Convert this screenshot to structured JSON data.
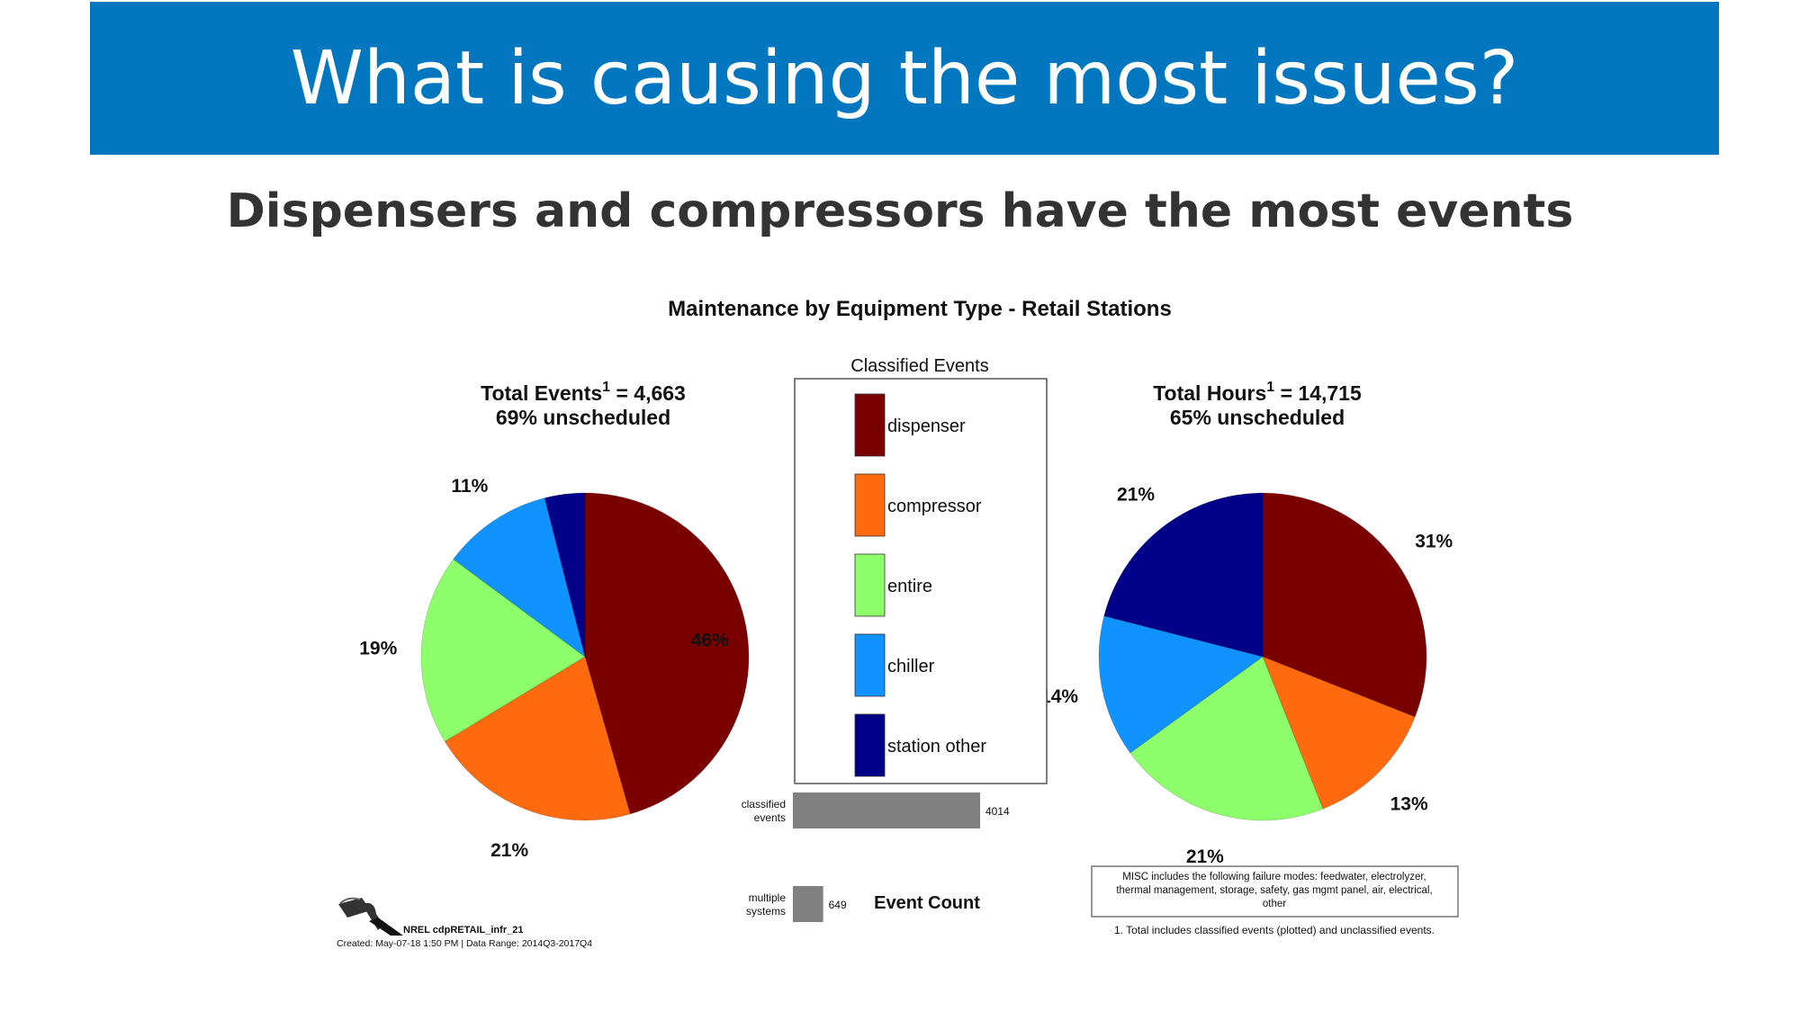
{
  "banner": {
    "title": "What is causing the most issues?"
  },
  "subtitle": "Dispensers and compressors have the most events",
  "chart_data": {
    "type": "pie",
    "title": "Maintenance by Equipment Type - Retail Stations",
    "legend": {
      "title": "Classified Events",
      "placement": "center",
      "items": [
        {
          "label": "dispenser",
          "color": "#7a0000"
        },
        {
          "label": "compressor",
          "color": "#ff6a0e"
        },
        {
          "label": "entire",
          "color": "#8dff6a"
        },
        {
          "label": "chiller",
          "color": "#1193ff"
        },
        {
          "label": "station other",
          "color": "#000088"
        }
      ]
    },
    "charts": [
      {
        "heading_prefix": "Total Events",
        "heading_sup": "1",
        "heading_value": " = 4,663",
        "heading_line2": "69% unscheduled",
        "categories": [
          "dispenser",
          "compressor",
          "entire",
          "chiller",
          "station other"
        ],
        "values": [
          46,
          21,
          19,
          11,
          4
        ],
        "labels": [
          "46%",
          "21%",
          "19%",
          "11%",
          ""
        ]
      },
      {
        "heading_prefix": "Total Hours",
        "heading_sup": "1",
        "heading_value": " = 14,715",
        "heading_line2": "65% unscheduled",
        "categories": [
          "dispenser",
          "compressor",
          "entire",
          "chiller",
          "station other"
        ],
        "values": [
          31,
          13,
          21,
          14,
          21
        ],
        "labels": [
          "31%",
          "13%",
          "21%",
          "14%",
          "21%"
        ]
      }
    ],
    "event_count": {
      "title": "Event Count",
      "bars": [
        {
          "label_line1": "classified",
          "label_line2": "events",
          "value": 4014,
          "value_label": "4014"
        },
        {
          "label_line1": "multiple",
          "label_line2": "systems",
          "value": 649,
          "value_label": "649"
        }
      ],
      "color": "#808080"
    }
  },
  "misc_note": {
    "line1": "MISC includes the following failure modes: feedwater, electrolyzer,",
    "line2": "thermal management, storage, safety, gas mgmt panel, air, electrical,",
    "line3": "other"
  },
  "footnote": "1. Total includes classified events (plotted) and unclassified events.",
  "credit": {
    "name": "NREL cdpRETAIL_infr_21",
    "created": "Created: May-07-18  1:50 PM | Data Range: 2014Q3-2017Q4"
  },
  "icons": {
    "logo": "fuel-nozzle-icon"
  }
}
